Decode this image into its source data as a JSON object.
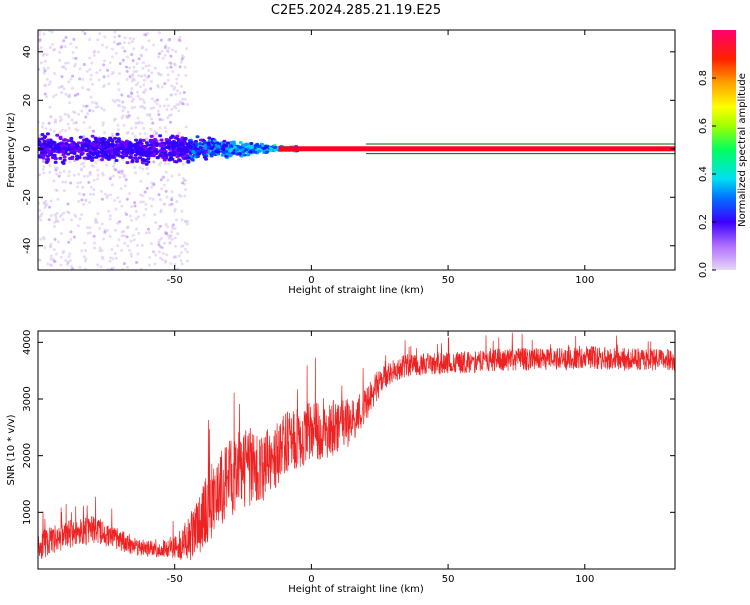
{
  "title": "C2E5.2024.285.21.19.E25",
  "colorbar": {
    "label": "Normalized spectral amplitude",
    "ticks": [
      "0.0",
      "0.2",
      "0.4",
      "0.6",
      "0.8"
    ],
    "colors": [
      "#d8c0f0",
      "#b070ff",
      "#7a00ff",
      "#3000ff",
      "#0040ff",
      "#00a0ff",
      "#00e0e0",
      "#00ff80",
      "#40ff00",
      "#c0ff00",
      "#ffff00",
      "#ffb000",
      "#ff5000",
      "#ff0020",
      "#ff0060"
    ]
  },
  "chart_data": [
    {
      "type": "heatmap",
      "xlabel": "Height of straight line (km)",
      "ylabel": "Frequency (Hz)",
      "xlim": [
        -100,
        133
      ],
      "ylim": [
        -50,
        49
      ],
      "xticks": [
        "-50",
        "0",
        "50",
        "100"
      ],
      "yticks": [
        "-40",
        "-20",
        "0",
        "20",
        "40"
      ],
      "line_frequency_hz": 0,
      "line_start_km": 20,
      "description_regions": [
        {
          "x_range": [
            -100,
            -45
          ],
          "freq_spread_hz": [
            -50,
            49
          ],
          "amplitude": "low-medium"
        },
        {
          "x_range": [
            -45,
            -10
          ],
          "freq_spread_hz": [
            -8,
            8
          ],
          "amplitude": "medium"
        },
        {
          "x_range": [
            -10,
            133
          ],
          "freq_spread_hz": [
            -1,
            1
          ],
          "amplitude": "high"
        }
      ]
    },
    {
      "type": "line",
      "xlabel": "Height of straight line (km)",
      "ylabel": "SNR (10 * v/v)",
      "xlim": [
        -100,
        133
      ],
      "ylim": [
        0,
        4200
      ],
      "xticks": [
        "-50",
        "0",
        "50",
        "100"
      ],
      "yticks": [
        "1000",
        "2000",
        "3000",
        "4000"
      ],
      "color": "#ee2222",
      "x": [
        -100,
        -90,
        -80,
        -70,
        -60,
        -55,
        -50,
        -45,
        -40,
        -35,
        -30,
        -25,
        -20,
        -15,
        -10,
        -5,
        0,
        5,
        10,
        15,
        20,
        25,
        30,
        35,
        40,
        50,
        60,
        70,
        80,
        90,
        100,
        110,
        120,
        133
      ],
      "y": [
        400,
        600,
        700,
        500,
        350,
        350,
        400,
        500,
        900,
        1300,
        1600,
        1800,
        1700,
        1900,
        2200,
        2300,
        2400,
        2500,
        2500,
        2600,
        2900,
        3300,
        3500,
        3600,
        3600,
        3650,
        3650,
        3700,
        3700,
        3700,
        3750,
        3700,
        3700,
        3700
      ],
      "noise": [
        250,
        250,
        250,
        200,
        150,
        150,
        200,
        400,
        600,
        700,
        700,
        700,
        650,
        600,
        550,
        550,
        550,
        550,
        500,
        400,
        300,
        250,
        200,
        200,
        200,
        200,
        200,
        200,
        200,
        200,
        200,
        200,
        200,
        200
      ]
    }
  ]
}
